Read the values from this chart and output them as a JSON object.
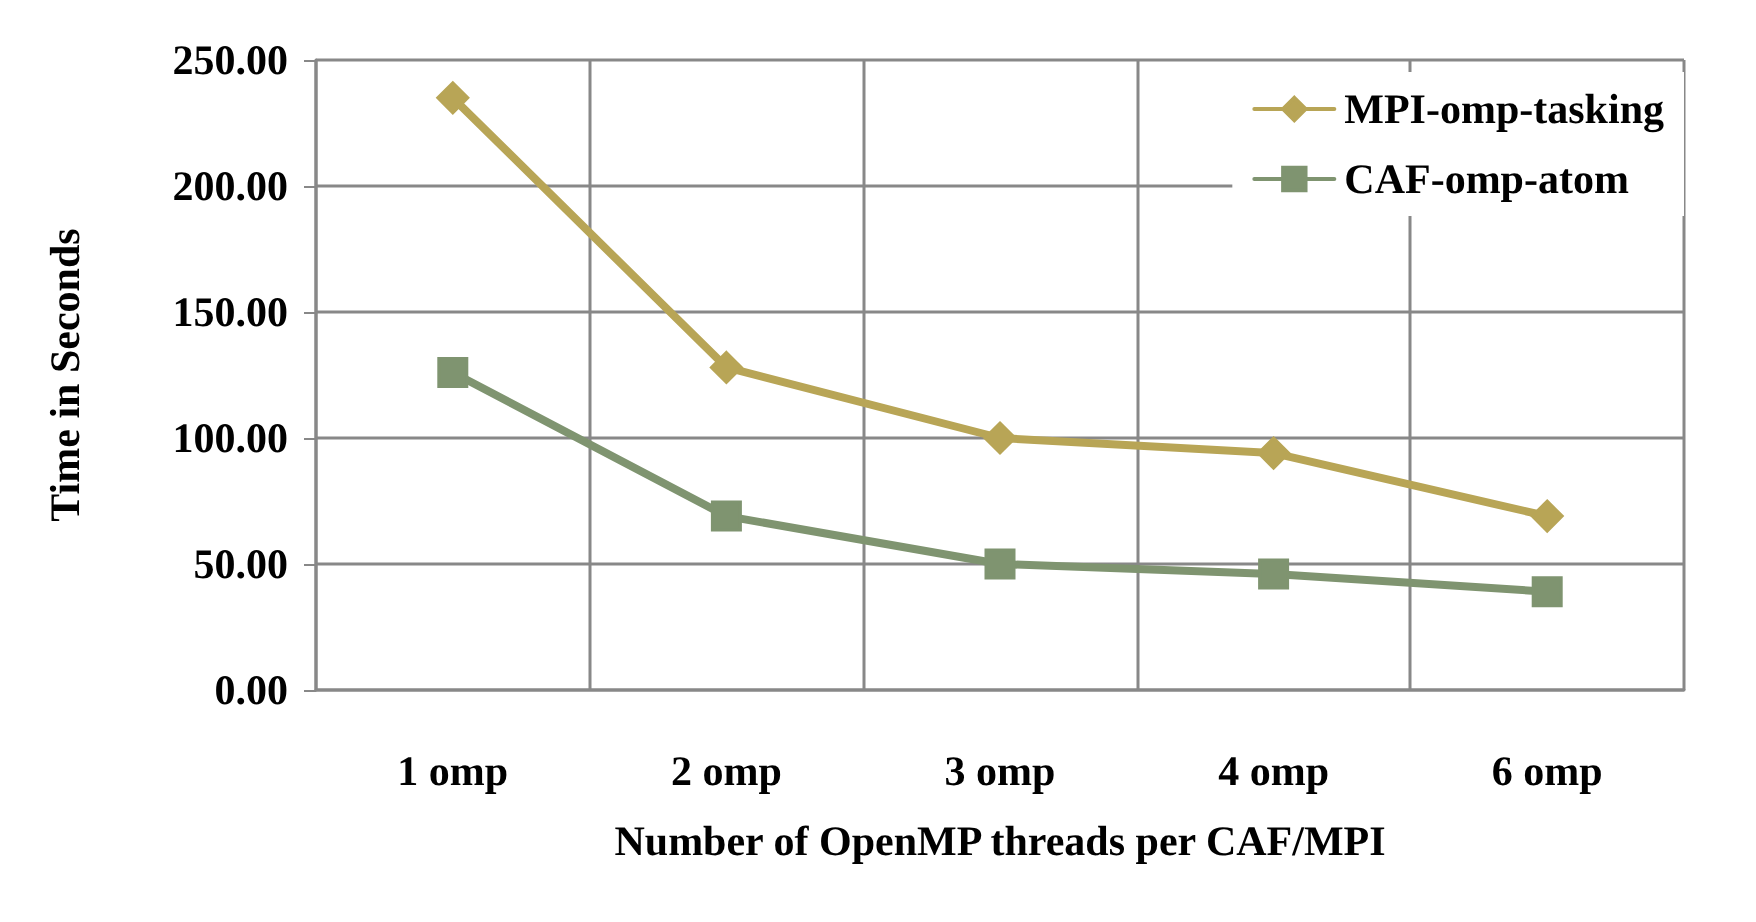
{
  "chart_data": {
    "type": "line",
    "xlabel": "Number of OpenMP threads per CAF/MPI",
    "ylabel": "Time in Seconds",
    "categories": [
      "1 omp",
      "2 omp",
      "3 omp",
      "4 omp",
      "6 omp"
    ],
    "series": [
      {
        "name": "MPI-omp-tasking",
        "color": "#b8a556",
        "marker": "diamond",
        "values": [
          235,
          128,
          100,
          94,
          69
        ]
      },
      {
        "name": "CAF-omp-atom",
        "color": "#7f9470",
        "marker": "square",
        "values": [
          126,
          69,
          50,
          46,
          39
        ]
      }
    ],
    "ylim": [
      0,
      250
    ],
    "yticks": [
      {
        "value": 0,
        "label": "0.00"
      },
      {
        "value": 50,
        "label": "50.00"
      },
      {
        "value": 100,
        "label": "100.00"
      },
      {
        "value": 150,
        "label": "150.00"
      },
      {
        "value": 200,
        "label": "200.00"
      },
      {
        "value": 250,
        "label": "250.00"
      }
    ],
    "grid": true,
    "legend": "top right"
  }
}
